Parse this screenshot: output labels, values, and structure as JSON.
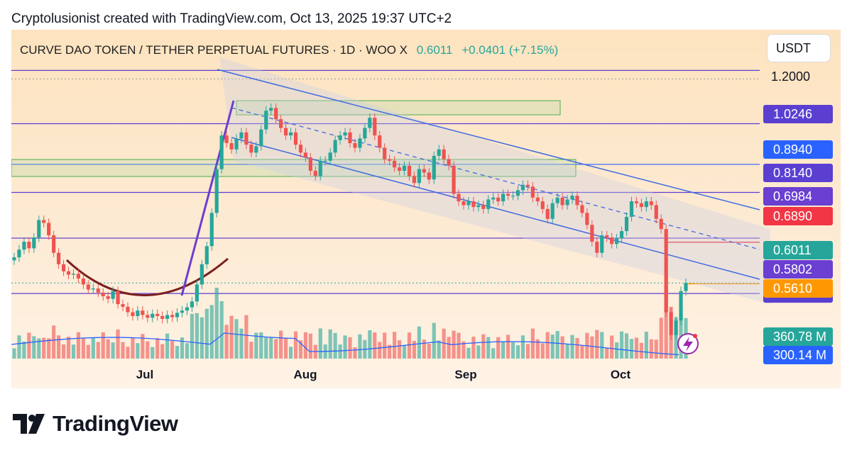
{
  "header": {
    "text": "Cryptolusionist created with TradingView.com, Oct 13, 2025 19:37 UTC+2"
  },
  "symbol": {
    "name": "CURVE DAO TOKEN / TETHER PERPETUAL FUTURES · 1D · WOO X",
    "price": "0.6011",
    "change": "+0.0401 (+7.15%)"
  },
  "currency": "USDT",
  "brand": "TradingView",
  "colors": {
    "up": "#26a69a",
    "down": "#ef5350",
    "channel": "#3f6be0",
    "level": "#5b3fd1"
  },
  "chart_data": {
    "type": "candlestick",
    "title": "CURVE DAO TOKEN / TETHER PERPETUAL FUTURES · 1D · WOO X",
    "xlabels": [
      "Jul",
      "Aug",
      "Sep",
      "Oct"
    ],
    "ylim": [
      0.46,
      1.27
    ],
    "y_scale": "log",
    "axis_ticks": [
      "1.2000",
      "0.5000"
    ],
    "levels": [
      {
        "value": 1.2246,
        "color": "#5b3fd1",
        "label": ""
      },
      {
        "value": 1.0246,
        "color": "#5b3fd1",
        "label": "1.0246"
      },
      {
        "value": 0.894,
        "color": "#2962ff",
        "label": "0.8940"
      },
      {
        "value": 0.814,
        "color": "#5b3fd1",
        "label": "0.8140"
      },
      {
        "value": 0.6984,
        "color": "#6a3fd1",
        "label": "0.6984"
      },
      {
        "value": 0.5802,
        "color": "#5b3fd1",
        "label": "0.5802"
      }
    ],
    "price_labels": [
      {
        "value": 0.689,
        "label": "0.6890",
        "color": "#f23645"
      },
      {
        "value": 0.6011,
        "label": "0.6011",
        "color": "#26a69a"
      },
      {
        "value": 0.561,
        "label": "0.5610",
        "color": "#ff9800"
      }
    ],
    "volume_labels": [
      {
        "label": "360.78 M",
        "color": "#26a69a"
      },
      {
        "label": "300.14 M",
        "color": "#2962ff"
      }
    ],
    "close_series": [
      0.655,
      0.672,
      0.69,
      0.675,
      0.7,
      0.742,
      0.735,
      0.705,
      0.665,
      0.64,
      0.625,
      0.618,
      0.62,
      0.61,
      0.598,
      0.588,
      0.59,
      0.582,
      0.575,
      0.57,
      0.585,
      0.56,
      0.555,
      0.545,
      0.538,
      0.548,
      0.54,
      0.535,
      0.542,
      0.538,
      0.533,
      0.54,
      0.536,
      0.544,
      0.548,
      0.554,
      0.565,
      0.598,
      0.64,
      0.68,
      0.76,
      0.88,
      0.985,
      0.96,
      0.94,
      0.975,
      0.995,
      0.955,
      0.93,
      0.95,
      1.005,
      1.07,
      1.08,
      1.04,
      1.01,
      0.985,
      0.995,
      0.955,
      0.93,
      0.915,
      0.875,
      0.86,
      0.905,
      0.905,
      0.93,
      0.97,
      0.985,
      0.995,
      0.96,
      0.945,
      0.975,
      1.01,
      1.045,
      0.985,
      0.945,
      0.91,
      0.905,
      0.885,
      0.875,
      0.89,
      0.86,
      0.84,
      0.88,
      0.87,
      0.85,
      0.92,
      0.94,
      0.91,
      0.89,
      0.81,
      0.79,
      0.78,
      0.79,
      0.775,
      0.78,
      0.77,
      0.795,
      0.8,
      0.79,
      0.81,
      0.805,
      0.805,
      0.82,
      0.835,
      0.83,
      0.8,
      0.79,
      0.77,
      0.745,
      0.785,
      0.8,
      0.78,
      0.795,
      0.805,
      0.78,
      0.76,
      0.73,
      0.69,
      0.665,
      0.705,
      0.7,
      0.685,
      0.698,
      0.715,
      0.75,
      0.79,
      0.785,
      0.775,
      0.79,
      0.78,
      0.745,
      0.72,
      0.545,
      0.505,
      0.53,
      0.585,
      0.6011
    ],
    "channel": {
      "upper": [
        {
          "x": 0.251,
          "y": 1.28
        },
        {
          "x": 0.915,
          "y": 0.72
        }
      ],
      "middle": [
        {
          "x": 0.268,
          "y": 1.06
        },
        {
          "x": 0.915,
          "y": 0.63
        }
      ],
      "lower": [
        {
          "x": 0.268,
          "y": 0.905
        },
        {
          "x": 0.915,
          "y": 0.56
        }
      ]
    }
  }
}
